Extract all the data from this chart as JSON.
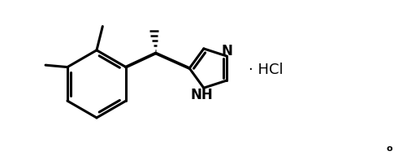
{
  "background_color": "#ffffff",
  "line_color": "#000000",
  "line_width": 2.2,
  "thin_lw": 1.5,
  "hcl_text": "· HCl",
  "nh_text": "NH",
  "n_text": "N",
  "degree_text": "o",
  "hcl_fontsize": 13,
  "label_fontsize": 12,
  "degree_fontsize": 8,
  "fig_width": 5.02,
  "fig_height": 1.97,
  "dpi": 100,
  "xlim": [
    0,
    10
  ],
  "ylim": [
    0,
    4
  ]
}
